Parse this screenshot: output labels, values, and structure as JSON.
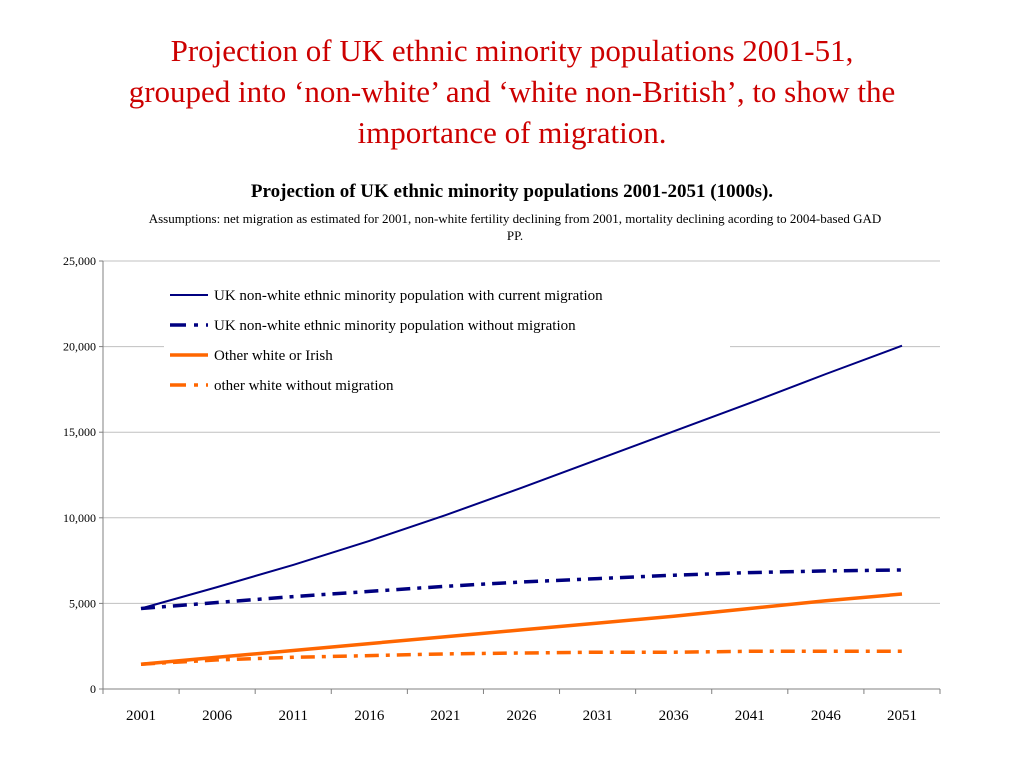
{
  "slide": {
    "title_lines": [
      "Projection of UK ethnic minority populations 2001-51,",
      "grouped into ‘non-white’ and ‘white non-British’, to show the",
      "importance of migration."
    ]
  },
  "chart_data": {
    "type": "line",
    "title": "Projection of UK ethnic minority populations 2001-2051 (1000s).",
    "subtitle": "Assumptions: net migration as estimated for 2001, non-white fertility declining from 2001, mortality declining acording to 2004-based GAD PP.",
    "xlabel": "",
    "ylabel": "",
    "categories": [
      "2001",
      "2006",
      "2011",
      "2016",
      "2021",
      "2026",
      "2031",
      "2036",
      "2041",
      "2046",
      "2051"
    ],
    "ylim": [
      0,
      25000
    ],
    "yticks": [
      0,
      5000,
      10000,
      15000,
      20000,
      25000
    ],
    "ytick_labels": [
      "0",
      "5,000",
      "10,000",
      "15,000",
      "20,000",
      "25,000"
    ],
    "grid": true,
    "legend_position": "top-left",
    "series": [
      {
        "name": "UK non-white ethnic minority population with current migration",
        "color": "#000080",
        "style": "solid",
        "width": "thin",
        "values": [
          4700,
          5950,
          7250,
          8650,
          10150,
          11750,
          13400,
          15050,
          16700,
          18400,
          20050
        ]
      },
      {
        "name": "UK non-white ethnic minority population without migration",
        "color": "#000080",
        "style": "dash-dot",
        "width": "thick",
        "values": [
          4700,
          5050,
          5400,
          5700,
          6000,
          6250,
          6450,
          6650,
          6800,
          6900,
          6950
        ]
      },
      {
        "name": "Other white or Irish",
        "color": "#ff6600",
        "style": "solid",
        "width": "thick",
        "values": [
          1450,
          1850,
          2250,
          2650,
          3050,
          3450,
          3850,
          4250,
          4700,
          5150,
          5550
        ]
      },
      {
        "name": "other white without migration",
        "color": "#ff6600",
        "style": "dash-dot",
        "width": "thick",
        "values": [
          1450,
          1700,
          1850,
          1950,
          2050,
          2100,
          2150,
          2150,
          2200,
          2200,
          2200
        ]
      }
    ]
  }
}
